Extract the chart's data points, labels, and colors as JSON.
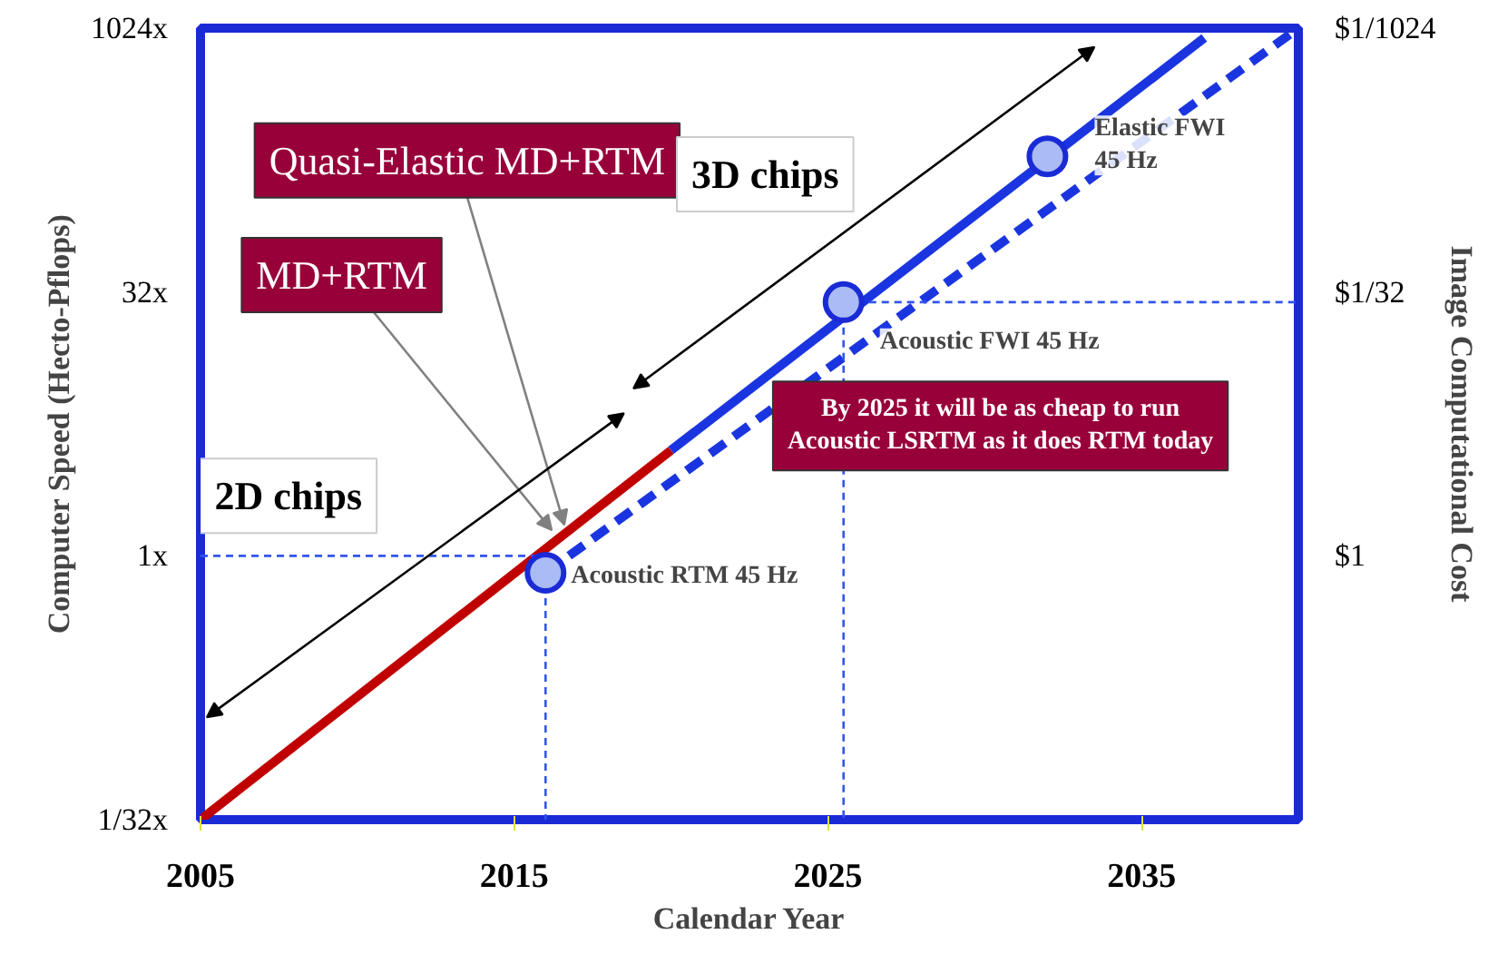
{
  "chart_data": {
    "type": "line",
    "xlabel": "Calendar Year",
    "ylabel": "Computer Speed (Hecto-Pflops)",
    "y2label": "Image Computational Cost",
    "xlim": [
      2005,
      2040
    ],
    "xticks": [
      2005,
      2015,
      2025,
      2035
    ],
    "ylim": [
      0.03125,
      1024
    ],
    "yticks": [
      {
        "value": 0.03125,
        "label": "1/32x"
      },
      {
        "value": 1,
        "label": "1x"
      },
      {
        "value": 32,
        "label": "32x"
      },
      {
        "value": 1024,
        "label": "1024x"
      }
    ],
    "log": "y",
    "grid": false,
    "series": [
      {
        "color": "#c00000",
        "line_style": "solid",
        "x": [
          2005,
          2020
        ],
        "values": [
          0.03125,
          4
        ]
      },
      {
        "color": "#1a35e0",
        "line_style": "solid",
        "x": [
          2020,
          2037
        ],
        "values": [
          4,
          900
        ]
      },
      {
        "color": "#1a35e0",
        "line_style": "dashed",
        "x": [
          2016,
          2040
        ],
        "values": [
          0.8,
          1024
        ]
      },
      {
        "color": "#3355ee",
        "line_style": "dotted",
        "x": [
          2005,
          2016
        ],
        "values": [
          1,
          1
        ]
      },
      {
        "color": "#3355ee",
        "line_style": "dotted",
        "x": [
          2016,
          2016
        ],
        "values": [
          0.8,
          0.03125
        ]
      },
      {
        "color": "#3355ee",
        "line_style": "dotted",
        "x": [
          2025.5,
          2025.5
        ],
        "values": [
          28,
          0.03125
        ]
      },
      {
        "color": "#3355ee",
        "line_style": "dotted",
        "x": [
          2025.5,
          2040
        ],
        "values": [
          28,
          28
        ]
      },
      {
        "type": "scatter",
        "marker": "circle",
        "color": "#aabbf5",
        "x": [
          2016,
          2025.5,
          2032
        ],
        "values": [
          0.8,
          28,
          190
        ]
      }
    ],
    "annotations": [
      {
        "text": "Quasi-Elastic MD+RTM",
        "x": 2016.6,
        "y": 1.5
      },
      {
        "text": "MD+RTM",
        "x": 2016.2,
        "y": 1.4
      },
      "3D chips",
      "2D chips",
      "By 2025 it will be as cheap to run\nAcoustic LSRTM as it does RTM today",
      {
        "text": "Acoustic RTM 45 Hz",
        "x": 2016,
        "y": 0.8
      },
      {
        "text": "Acoustic FWI 45 Hz",
        "x": 2025.5,
        "y": 28
      },
      {
        "text": "Elastic FWI\n45 Hz",
        "x": 2032,
        "y": 190
      },
      "$1",
      "$1/32",
      "$1/1024"
    ]
  }
}
